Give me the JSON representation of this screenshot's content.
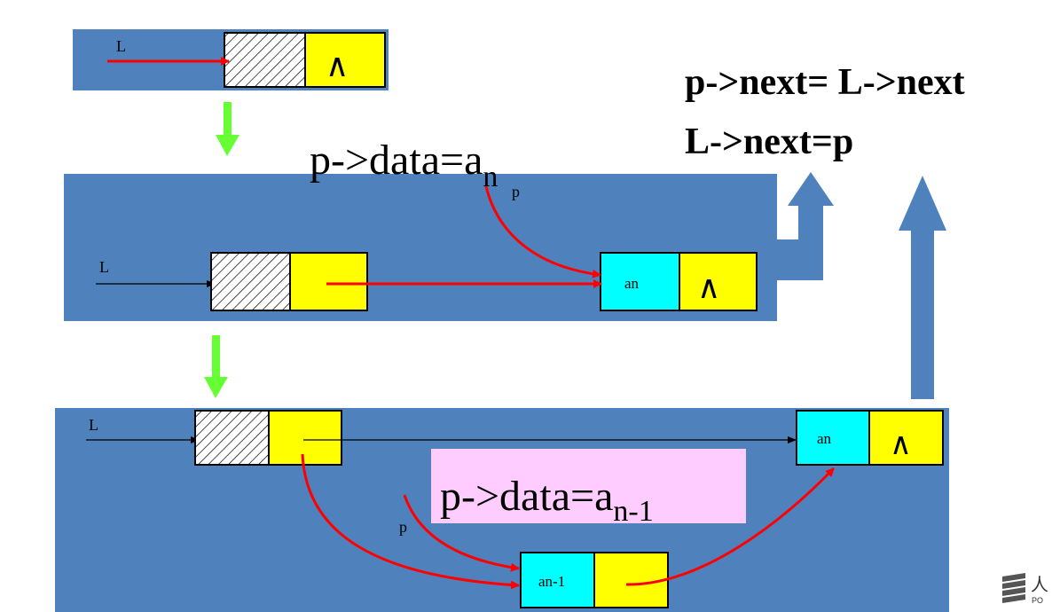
{
  "colors": {
    "panel": "#4f81bd",
    "head_node": "#ffffff",
    "data_field": "#00ffff",
    "next_field": "#ffff00",
    "red_arrow": "#ff0000",
    "green_arrow": "#66ff33",
    "pink_box": "#ffccff",
    "big_arrow": "#4f81bd"
  },
  "step1": {
    "pointer_label": "L",
    "null_symbol": "∧"
  },
  "step2": {
    "pointer_label": "L",
    "p_label": "p",
    "formula_main": "p->data=a",
    "formula_sub": "n",
    "node_data": "an",
    "null_symbol": "∧"
  },
  "step3": {
    "pointer_label": "L",
    "p_label": "p",
    "formula_main": "p->data=a",
    "formula_sub": "n-1",
    "node_new_data": "an-1",
    "node_old_data": "an",
    "null_symbol": "∧"
  },
  "code": {
    "line1": "p->next= L->next",
    "line2": "L->next=p"
  },
  "logo": {
    "glyph": "人",
    "sub": "PO"
  }
}
